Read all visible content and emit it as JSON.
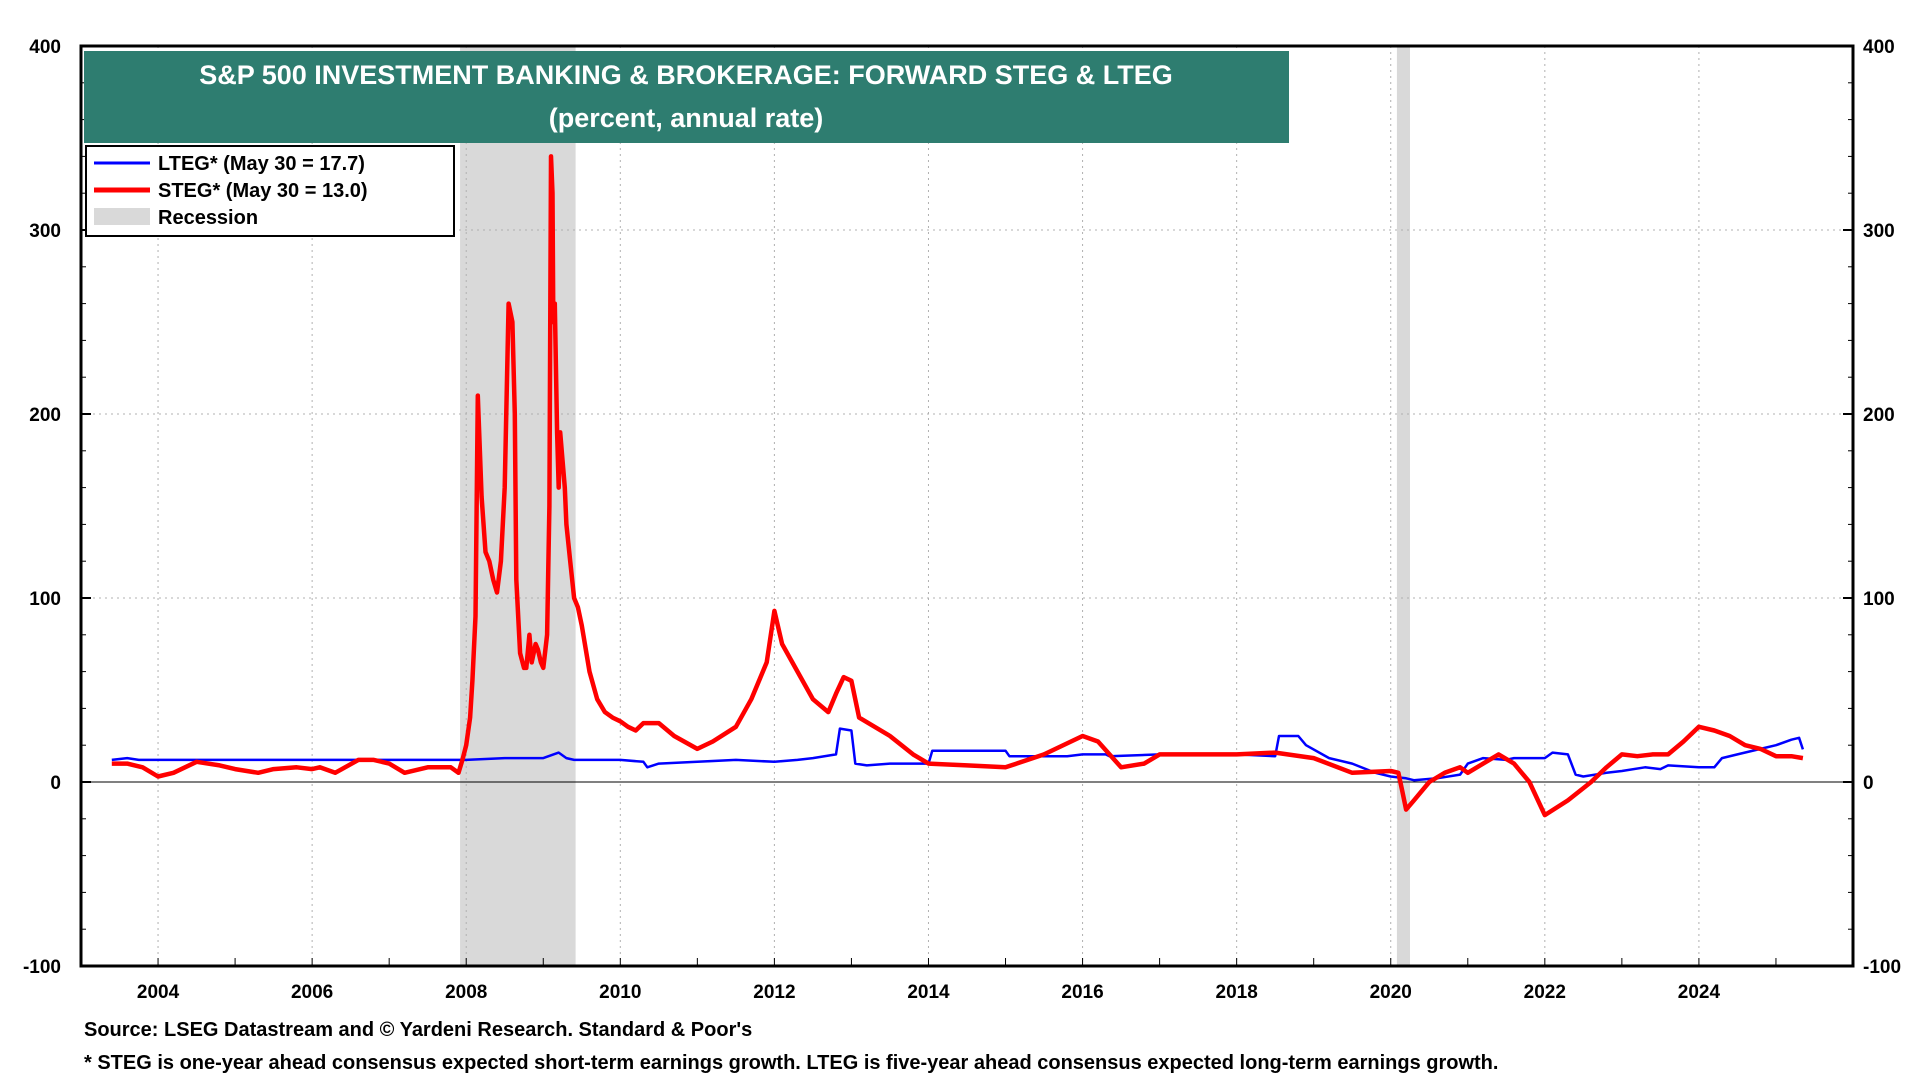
{
  "chart_data": {
    "type": "line",
    "title": "S&P 500 INVESTMENT BANKING & BROKERAGE: FORWARD STEG & LTEG",
    "subtitle": "(percent, annual rate)",
    "xlabel": "",
    "ylabel": "",
    "xlim": [
      2003.0,
      2026.0
    ],
    "ylim": [
      -100,
      400
    ],
    "y_ticks": [
      -100,
      0,
      100,
      200,
      300,
      400
    ],
    "x_ticks": [
      2004,
      2006,
      2008,
      2010,
      2012,
      2014,
      2016,
      2018,
      2020,
      2022,
      2024
    ],
    "grid": true,
    "legend": {
      "position": "top-left",
      "entries": [
        {
          "label": "LTEG* (May 30 = 17.7)",
          "color": "#0000ff",
          "kind": "line"
        },
        {
          "label": "STEG* (May 30 = 13.0)",
          "color": "#ff0000",
          "kind": "line"
        },
        {
          "label": "Recession",
          "color": "#d9d9d9",
          "kind": "box"
        }
      ]
    },
    "recessions": [
      [
        2007.92,
        2009.42
      ],
      [
        2020.08,
        2020.25
      ]
    ],
    "series": [
      {
        "name": "LTEG",
        "color": "#0000ff",
        "x": [
          2003.4,
          2003.6,
          2003.75,
          2004.5,
          2005.5,
          2006.5,
          2007.5,
          2008.0,
          2008.5,
          2009.0,
          2009.2,
          2009.3,
          2009.4,
          2010.0,
          2010.3,
          2010.35,
          2010.5,
          2011.0,
          2011.5,
          2012.0,
          2012.3,
          2012.5,
          2012.8,
          2012.85,
          2013.0,
          2013.05,
          2013.2,
          2013.5,
          2014.0,
          2014.05,
          2014.5,
          2015.0,
          2015.05,
          2015.5,
          2015.8,
          2016.0,
          2016.3,
          2016.35,
          2017.0,
          2017.5,
          2018.0,
          2018.5,
          2018.55,
          2018.8,
          2018.9,
          2019.2,
          2019.5,
          2019.8,
          2020.0,
          2020.2,
          2020.3,
          2020.6,
          2020.9,
          2021.0,
          2021.2,
          2021.5,
          2021.6,
          2021.8,
          2022.0,
          2022.1,
          2022.3,
          2022.4,
          2022.5,
          2022.8,
          2023.0,
          2023.3,
          2023.5,
          2023.6,
          2024.0,
          2024.2,
          2024.3,
          2024.5,
          2024.8,
          2025.0,
          2025.2,
          2025.3,
          2025.35
        ],
        "values": [
          12,
          13,
          12,
          12,
          12,
          12,
          12,
          12,
          13,
          13,
          16,
          13,
          12,
          12,
          11,
          8,
          10,
          11,
          12,
          11,
          12,
          13,
          15,
          29,
          28,
          10,
          9,
          10,
          10,
          17,
          17,
          17,
          14,
          14,
          14,
          15,
          15,
          14,
          15,
          15,
          15,
          14,
          25,
          25,
          20,
          13,
          10,
          5,
          3,
          2,
          1,
          2,
          4,
          10,
          13,
          12,
          13,
          13,
          13,
          16,
          15,
          4,
          3,
          5,
          6,
          8,
          7,
          9,
          8,
          8,
          13,
          15,
          18,
          20,
          23,
          24,
          17.7
        ]
      },
      {
        "name": "STEG",
        "color": "#ff0000",
        "x": [
          2003.4,
          2003.6,
          2003.8,
          2004.0,
          2004.2,
          2004.5,
          2004.8,
          2005.0,
          2005.3,
          2005.5,
          2005.8,
          2006.0,
          2006.1,
          2006.3,
          2006.6,
          2006.8,
          2007.0,
          2007.2,
          2007.5,
          2007.8,
          2007.9,
          2007.95,
          2008.0,
          2008.05,
          2008.08,
          2008.12,
          2008.15,
          2008.2,
          2008.25,
          2008.3,
          2008.35,
          2008.4,
          2008.45,
          2008.5,
          2008.55,
          2008.6,
          2008.63,
          2008.65,
          2008.7,
          2008.75,
          2008.78,
          2008.82,
          2008.85,
          2008.9,
          2008.93,
          2008.97,
          2009.0,
          2009.05,
          2009.08,
          2009.1,
          2009.12,
          2009.13,
          2009.15,
          2009.18,
          2009.2,
          2009.22,
          2009.25,
          2009.28,
          2009.3,
          2009.35,
          2009.4,
          2009.45,
          2009.5,
          2009.6,
          2009.7,
          2009.8,
          2009.9,
          2010.0,
          2010.1,
          2010.2,
          2010.3,
          2010.5,
          2010.7,
          2011.0,
          2011.2,
          2011.5,
          2011.7,
          2011.9,
          2012.0,
          2012.1,
          2012.3,
          2012.5,
          2012.7,
          2012.8,
          2012.9,
          2013.0,
          2013.1,
          2013.5,
          2013.8,
          2014.0,
          2014.5,
          2015.0,
          2015.5,
          2016.0,
          2016.2,
          2016.5,
          2016.8,
          2017.0,
          2017.5,
          2018.0,
          2018.5,
          2019.0,
          2019.5,
          2020.0,
          2020.1,
          2020.15,
          2020.2,
          2020.3,
          2020.5,
          2020.7,
          2020.9,
          2021.0,
          2021.2,
          2021.4,
          2021.6,
          2021.8,
          2022.0,
          2022.3,
          2022.6,
          2022.8,
          2023.0,
          2023.2,
          2023.4,
          2023.6,
          2023.8,
          2024.0,
          2024.2,
          2024.4,
          2024.6,
          2024.8,
          2025.0,
          2025.2,
          2025.35
        ],
        "values": [
          10,
          10,
          8,
          3,
          5,
          11,
          9,
          7,
          5,
          7,
          8,
          7,
          8,
          5,
          12,
          12,
          10,
          5,
          8,
          8,
          5,
          12,
          20,
          35,
          55,
          90,
          210,
          155,
          125,
          120,
          110,
          103,
          120,
          160,
          260,
          250,
          200,
          110,
          70,
          62,
          62,
          80,
          65,
          75,
          72,
          65,
          62,
          80,
          150,
          340,
          320,
          250,
          260,
          190,
          160,
          190,
          175,
          160,
          140,
          120,
          100,
          95,
          85,
          60,
          45,
          38,
          35,
          33,
          30,
          28,
          32,
          32,
          25,
          18,
          22,
          30,
          45,
          65,
          93,
          75,
          60,
          45,
          38,
          48,
          57,
          55,
          35,
          25,
          15,
          10,
          9,
          8,
          15,
          25,
          22,
          8,
          10,
          15,
          15,
          15,
          16,
          13,
          5,
          6,
          5,
          -5,
          -15,
          -10,
          0,
          5,
          8,
          5,
          10,
          15,
          10,
          0,
          -18,
          -10,
          0,
          8,
          15,
          14,
          15,
          15,
          22,
          30,
          28,
          25,
          20,
          18,
          14,
          14,
          13
        ]
      }
    ],
    "source": "Source: LSEG Datastream and © Yardeni Research. Standard & Poor's",
    "footnote": "* STEG is one-year ahead consensus expected short-term earnings growth. LTEG is five-year ahead consensus expected long-term earnings growth."
  }
}
